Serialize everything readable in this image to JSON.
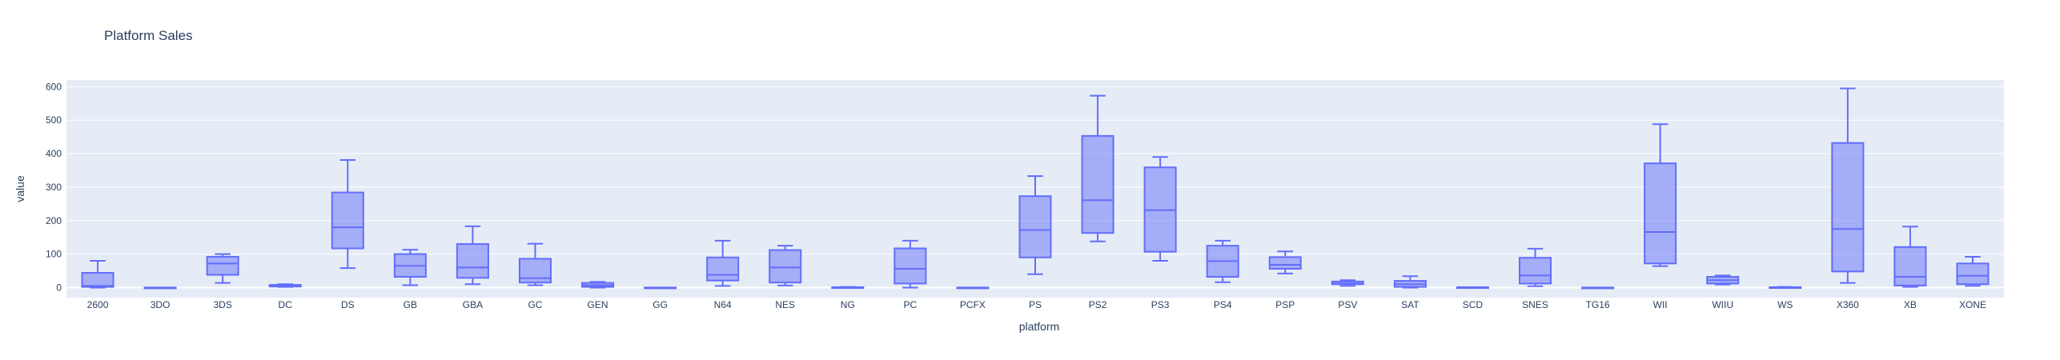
{
  "chart_data": {
    "type": "box",
    "title": "Platform Sales",
    "xlabel": "platform",
    "ylabel": "value",
    "ylim": [
      -30,
      620
    ],
    "yticks": [
      0,
      100,
      200,
      300,
      400,
      500,
      600
    ],
    "grid": true,
    "color": "#636efa",
    "plot_bg": "#e5ecf6",
    "categories": [
      "2600",
      "3DO",
      "3DS",
      "DC",
      "DS",
      "GB",
      "GBA",
      "GC",
      "GEN",
      "GG",
      "N64",
      "NES",
      "NG",
      "PC",
      "PCFX",
      "PS",
      "PS2",
      "PS3",
      "PS4",
      "PSP",
      "PSV",
      "SAT",
      "SCD",
      "SNES",
      "TG16",
      "WII",
      "WIIU",
      "WS",
      "X360",
      "XB",
      "XONE"
    ],
    "boxes": [
      {
        "min": 0,
        "q1": 2,
        "median": 5,
        "q3": 44,
        "max": 80
      },
      {
        "min": 0,
        "q1": 0,
        "median": 0,
        "q3": 0,
        "max": 0
      },
      {
        "min": 14,
        "q1": 38,
        "median": 72,
        "q3": 92,
        "max": 100
      },
      {
        "min": 2,
        "q1": 3,
        "median": 5,
        "q3": 8,
        "max": 10
      },
      {
        "min": 58,
        "q1": 117,
        "median": 180,
        "q3": 284,
        "max": 381
      },
      {
        "min": 7,
        "q1": 32,
        "median": 65,
        "q3": 100,
        "max": 113
      },
      {
        "min": 10,
        "q1": 29,
        "median": 60,
        "q3": 130,
        "max": 183
      },
      {
        "min": 7,
        "q1": 15,
        "median": 28,
        "q3": 86,
        "max": 131
      },
      {
        "min": 0,
        "q1": 2,
        "median": 7,
        "q3": 14,
        "max": 17
      },
      {
        "min": 0,
        "q1": 0,
        "median": 0,
        "q3": 0,
        "max": 0
      },
      {
        "min": 5,
        "q1": 21,
        "median": 38,
        "q3": 90,
        "max": 140
      },
      {
        "min": 6,
        "q1": 15,
        "median": 60,
        "q3": 112,
        "max": 125
      },
      {
        "min": 0,
        "q1": 0,
        "median": 1,
        "q3": 1,
        "max": 2
      },
      {
        "min": 0,
        "q1": 12,
        "median": 56,
        "q3": 117,
        "max": 140
      },
      {
        "min": 0,
        "q1": 0,
        "median": 0,
        "q3": 0,
        "max": 0
      },
      {
        "min": 40,
        "q1": 90,
        "median": 172,
        "q3": 273,
        "max": 333
      },
      {
        "min": 138,
        "q1": 163,
        "median": 261,
        "q3": 453,
        "max": 573
      },
      {
        "min": 80,
        "q1": 107,
        "median": 231,
        "q3": 359,
        "max": 390
      },
      {
        "min": 16,
        "q1": 32,
        "median": 79,
        "q3": 125,
        "max": 140
      },
      {
        "min": 42,
        "q1": 56,
        "median": 68,
        "q3": 91,
        "max": 108
      },
      {
        "min": 5,
        "q1": 10,
        "median": 12,
        "q3": 18,
        "max": 22
      },
      {
        "min": 0,
        "q1": 2,
        "median": 10,
        "q3": 20,
        "max": 34
      },
      {
        "min": 0,
        "q1": 0,
        "median": 0,
        "q3": 1,
        "max": 1
      },
      {
        "min": 4,
        "q1": 12,
        "median": 36,
        "q3": 89,
        "max": 116
      },
      {
        "min": 0,
        "q1": 0,
        "median": 0,
        "q3": 0,
        "max": 0
      },
      {
        "min": 64,
        "q1": 72,
        "median": 166,
        "q3": 371,
        "max": 488
      },
      {
        "min": 9,
        "q1": 12,
        "median": 22,
        "q3": 32,
        "max": 36
      },
      {
        "min": 0,
        "q1": 0,
        "median": 1,
        "q3": 1,
        "max": 2
      },
      {
        "min": 14,
        "q1": 48,
        "median": 175,
        "q3": 432,
        "max": 595
      },
      {
        "min": 2,
        "q1": 6,
        "median": 32,
        "q3": 121,
        "max": 182
      },
      {
        "min": 5,
        "q1": 10,
        "median": 35,
        "q3": 72,
        "max": 92
      }
    ]
  }
}
